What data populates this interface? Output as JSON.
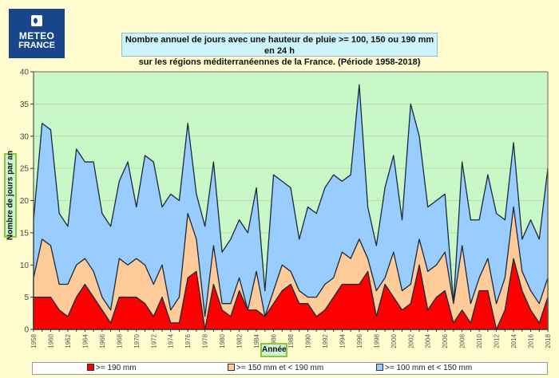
{
  "logo": {
    "line1": "METEO",
    "line2": "FRANCE"
  },
  "colors": {
    "plot_bg": "#c8f7c8",
    "series_100": "#99ccff",
    "series_150": "#ffcc99",
    "series_190": "#ff0000",
    "outline": "#1a2a3a"
  },
  "chart_data": {
    "type": "area",
    "stacked": false,
    "title": "Nombre annuel de jours avec une hauteur de pluie >= 100, 150 ou 190 mm en 24 h sur les régions méditerranéennes de la France. (Période 1958-2018)",
    "title_line1": "Nombre annuel de jours avec une hauteur de pluie >= 100, 150 ou 190 mm en 24 h",
    "title_line2": "sur les régions méditerranéennes de la France. (Période 1958-2018)",
    "xlabel": "Année",
    "ylabel": "Nombre de jours par an",
    "ylim": [
      0,
      40
    ],
    "yticks": [
      0,
      5,
      10,
      15,
      20,
      25,
      30,
      35,
      40
    ],
    "grid": true,
    "legend_position": "bottom",
    "x": [
      1958,
      1959,
      1960,
      1961,
      1962,
      1963,
      1964,
      1965,
      1966,
      1967,
      1968,
      1969,
      1970,
      1971,
      1972,
      1973,
      1974,
      1975,
      1976,
      1977,
      1978,
      1979,
      1980,
      1981,
      1982,
      1983,
      1984,
      1985,
      1986,
      1987,
      1988,
      1989,
      1990,
      1991,
      1992,
      1993,
      1994,
      1995,
      1996,
      1997,
      1998,
      1999,
      2000,
      2001,
      2002,
      2003,
      2004,
      2005,
      2006,
      2007,
      2008,
      2009,
      2010,
      2011,
      2012,
      2013,
      2014,
      2015,
      2016,
      2017,
      2018
    ],
    "xticks": [
      "1958",
      "1960",
      "1962",
      "1964",
      "1966",
      "1968",
      "1970",
      "1972",
      "1974",
      "1976",
      "1978",
      "1980",
      "1982",
      "1984",
      "1986",
      "1988",
      "1990",
      "1992",
      "1994",
      "1996",
      "1998",
      "2000",
      "2002",
      "2004",
      "2006",
      "2008",
      "2010",
      "2012",
      "2014",
      "2016",
      "2018"
    ],
    "series": [
      {
        "name": ">= 100 mm et < 150 mm",
        "key": "ge100",
        "values": [
          17,
          32,
          31,
          18,
          16,
          28,
          26,
          26,
          18,
          16,
          23,
          26,
          19,
          27,
          26,
          19,
          21,
          20,
          32,
          21,
          16,
          26,
          12,
          14,
          17,
          15,
          22,
          6,
          24,
          23,
          22,
          14,
          19,
          18,
          22,
          24,
          23,
          24,
          38,
          19,
          13,
          22,
          27,
          17,
          35,
          30,
          19,
          20,
          21,
          4,
          26,
          17,
          17,
          24,
          18,
          17,
          29,
          14,
          17,
          14,
          25
        ]
      },
      {
        "name": ">= 150 mm et < 190 mm",
        "key": "ge150",
        "values": [
          8,
          14,
          13,
          7,
          7,
          10,
          11,
          9,
          5,
          3,
          11,
          10,
          11,
          10,
          7,
          10,
          3,
          5,
          18,
          14,
          2,
          13,
          4,
          4,
          8,
          3,
          9,
          2,
          6,
          10,
          9,
          6,
          5,
          5,
          7,
          8,
          12,
          11,
          14,
          11,
          6,
          8,
          12,
          6,
          7,
          14,
          9,
          10,
          12,
          4,
          13,
          4,
          8,
          11,
          4,
          8,
          19,
          9,
          6,
          4,
          8
        ]
      },
      {
        "name": ">= 190 mm",
        "key": "ge190",
        "values": [
          5,
          5,
          5,
          3,
          2,
          5,
          7,
          5,
          3,
          1,
          5,
          5,
          5,
          4,
          2,
          5,
          1,
          1,
          8,
          9,
          0,
          7,
          3,
          2,
          6,
          3,
          3,
          2,
          4,
          6,
          7,
          4,
          4,
          2,
          3,
          5,
          7,
          7,
          7,
          9,
          2,
          7,
          5,
          3,
          4,
          10,
          3,
          5,
          6,
          1,
          3,
          1,
          6,
          6,
          0,
          3,
          11,
          6,
          3,
          1,
          5
        ]
      }
    ],
    "legend": [
      ">= 190 mm",
      ">= 150 mm et < 190 mm",
      ">= 100 mm et < 150 mm"
    ]
  }
}
